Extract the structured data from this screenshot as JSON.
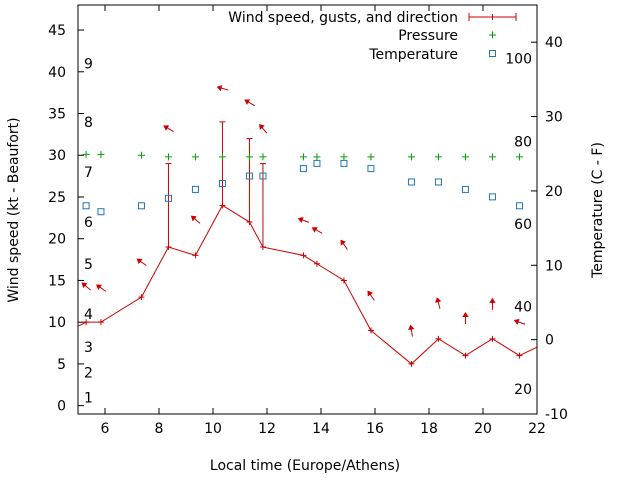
{
  "chart_data": {
    "type": "line",
    "title": "",
    "xlabel": "Local time (Europe/Athens)",
    "ylabel_left": "Wind speed (kt - Beaufort)",
    "ylabel_right": "Temperature (C - F)",
    "xlim": [
      5,
      22
    ],
    "ylim_left": [
      -1,
      48
    ],
    "ylim_right": [
      -10,
      45
    ],
    "x_ticks": [
      6,
      8,
      10,
      12,
      14,
      16,
      18,
      20,
      22
    ],
    "y_left_ticks": [
      0,
      5,
      10,
      15,
      20,
      25,
      30,
      35,
      40,
      45
    ],
    "y_right_ticks": [
      -10,
      0,
      10,
      20,
      30,
      40
    ],
    "beaufort_labels": [
      {
        "label": "1",
        "kt": 1
      },
      {
        "label": "2",
        "kt": 4
      },
      {
        "label": "3",
        "kt": 7
      },
      {
        "label": "4",
        "kt": 11
      },
      {
        "label": "5",
        "kt": 17
      },
      {
        "label": "6",
        "kt": 22
      },
      {
        "label": "7",
        "kt": 28
      },
      {
        "label": "8",
        "kt": 34
      },
      {
        "label": "9",
        "kt": 41
      }
    ],
    "fahrenheit_labels": [
      {
        "label": "20",
        "c": -6.67
      },
      {
        "label": "40",
        "c": 4.44
      },
      {
        "label": "60",
        "c": 15.56
      },
      {
        "label": "80",
        "c": 26.67
      },
      {
        "label": "100",
        "c": 37.78
      }
    ],
    "legend_position": "top-right",
    "grid": false,
    "series": [
      {
        "name": "Wind speed, gusts, and direction",
        "color": "#cc0000",
        "x": [
          5.3,
          5.85,
          7.35,
          8.35,
          9.35,
          10.35,
          11.35,
          11.85,
          13.35,
          13.85,
          14.85,
          15.85,
          17.35,
          18.35,
          19.35,
          20.35,
          21.35,
          22.0
        ],
        "wind": [
          10,
          10,
          13,
          19,
          18,
          24,
          22,
          19,
          18,
          17,
          15,
          9,
          5,
          8,
          6,
          8,
          6,
          7
        ],
        "gusts": [
          null,
          null,
          null,
          29,
          null,
          34,
          32,
          29,
          null,
          null,
          null,
          null,
          null,
          null,
          null,
          null,
          null,
          null
        ]
      },
      {
        "name": "Pressure",
        "color": "#00a000",
        "x": [
          5.3,
          5.85,
          7.35,
          8.35,
          9.35,
          10.35,
          11.35,
          11.85,
          13.35,
          13.85,
          14.85,
          15.85,
          17.35,
          18.35,
          19.35,
          20.35,
          21.35
        ],
        "values": [
          30.1,
          30.1,
          30.0,
          29.8,
          29.8,
          29.8,
          29.8,
          29.8,
          29.8,
          29.8,
          29.8,
          29.8,
          29.8,
          29.8,
          29.8,
          29.8,
          29.8
        ]
      },
      {
        "name": "Temperature",
        "color": "#1f77b4",
        "x": [
          5.3,
          5.85,
          7.35,
          8.35,
          9.35,
          10.35,
          11.35,
          11.85,
          13.35,
          13.85,
          14.85,
          15.85,
          17.35,
          18.35,
          19.35,
          20.35,
          21.35
        ],
        "values": [
          18,
          17.2,
          18,
          19,
          20.2,
          21,
          22,
          22,
          23,
          23.7,
          23.7,
          23,
          21.2,
          21.2,
          20.2,
          19.2,
          18
        ]
      }
    ],
    "wind_direction_arrows": [
      {
        "x": 5.3,
        "kt": 14.3,
        "angle": -140
      },
      {
        "x": 5.85,
        "kt": 14.1,
        "angle": -145
      },
      {
        "x": 7.35,
        "kt": 17.2,
        "angle": -145
      },
      {
        "x": 8.35,
        "kt": 33.2,
        "angle": -150
      },
      {
        "x": 9.35,
        "kt": 22.3,
        "angle": -140
      },
      {
        "x": 10.35,
        "kt": 38.0,
        "angle": -165
      },
      {
        "x": 11.35,
        "kt": 36.3,
        "angle": -150
      },
      {
        "x": 11.85,
        "kt": 33.2,
        "angle": -130
      },
      {
        "x": 13.35,
        "kt": 22.2,
        "angle": -160
      },
      {
        "x": 13.85,
        "kt": 21.0,
        "angle": -150
      },
      {
        "x": 14.85,
        "kt": 19.3,
        "angle": -125
      },
      {
        "x": 15.85,
        "kt": 13.2,
        "angle": -125
      },
      {
        "x": 17.35,
        "kt": 9.0,
        "angle": -100
      },
      {
        "x": 18.35,
        "kt": 12.3,
        "angle": -105
      },
      {
        "x": 19.35,
        "kt": 10.5,
        "angle": -90
      },
      {
        "x": 20.35,
        "kt": 12.2,
        "angle": -90
      },
      {
        "x": 21.35,
        "kt": 10.0,
        "angle": -160
      }
    ]
  }
}
